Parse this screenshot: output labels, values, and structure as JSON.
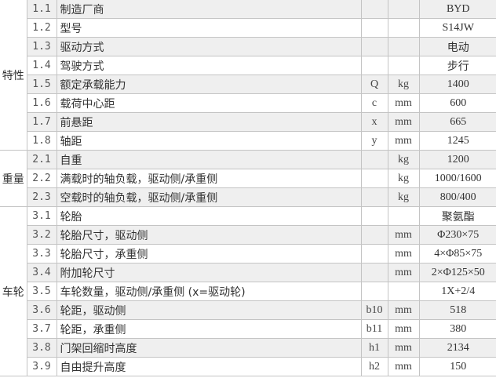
{
  "groups": [
    {
      "label": "特性",
      "rows": [
        {
          "no": "1.1",
          "name": "制造厂商",
          "sym": "",
          "unit": "",
          "value": "BYD"
        },
        {
          "no": "1.2",
          "name": "型号",
          "sym": "",
          "unit": "",
          "value": "S14JW"
        },
        {
          "no": "1.3",
          "name": "驱动方式",
          "sym": "",
          "unit": "",
          "value": "电动"
        },
        {
          "no": "1.4",
          "name": "驾驶方式",
          "sym": "",
          "unit": "",
          "value": "步行"
        },
        {
          "no": "1.5",
          "name": "额定承载能力",
          "sym": "Q",
          "unit": "kg",
          "value": "1400"
        },
        {
          "no": "1.6",
          "name": "载荷中心距",
          "sym": "c",
          "unit": "mm",
          "value": "600"
        },
        {
          "no": "1.7",
          "name": "前悬距",
          "sym": "x",
          "unit": "mm",
          "value": "665"
        },
        {
          "no": "1.8",
          "name": "轴距",
          "sym": "y",
          "unit": "mm",
          "value": "1245"
        }
      ]
    },
    {
      "label": "重量",
      "rows": [
        {
          "no": "2.1",
          "name": "自重",
          "sym": "",
          "unit": "kg",
          "value": "1200"
        },
        {
          "no": "2.2",
          "name": "满载时的轴负载，驱动侧/承重侧",
          "sym": "",
          "unit": "kg",
          "value": "1000/1600"
        },
        {
          "no": "2.3",
          "name": "空载时的轴负载，驱动侧/承重侧",
          "sym": "",
          "unit": "kg",
          "value": "800/400"
        }
      ]
    },
    {
      "label": "车轮",
      "rows": [
        {
          "no": "3.1",
          "name": "轮胎",
          "sym": "",
          "unit": "",
          "value": "聚氨酯"
        },
        {
          "no": "3.2",
          "name": "轮胎尺寸，驱动侧",
          "sym": "",
          "unit": "mm",
          "value": "Φ230×75"
        },
        {
          "no": "3.3",
          "name": "轮胎尺寸，承重侧",
          "sym": "",
          "unit": "mm",
          "value": "4×Φ85×75"
        },
        {
          "no": "3.4",
          "name": "附加轮尺寸",
          "sym": "",
          "unit": "mm",
          "value": "2×Φ125×50"
        },
        {
          "no": "3.5",
          "name": "车轮数量，驱动侧/承重侧 (x=驱动轮)",
          "sym": "",
          "unit": "",
          "value": "1X+2/4"
        },
        {
          "no": "3.6",
          "name": "轮距，驱动侧",
          "sym": "b10",
          "unit": "mm",
          "value": "518"
        },
        {
          "no": "3.7",
          "name": "轮距，承重侧",
          "sym": "b11",
          "unit": "mm",
          "value": "380"
        },
        {
          "no": "3.8",
          "name": "门架回缩时高度",
          "sym": "h1",
          "unit": "mm",
          "value": "2134"
        },
        {
          "no": "3.9",
          "name": "自由提升高度",
          "sym": "h2",
          "unit": "mm",
          "value": "150"
        }
      ]
    }
  ]
}
